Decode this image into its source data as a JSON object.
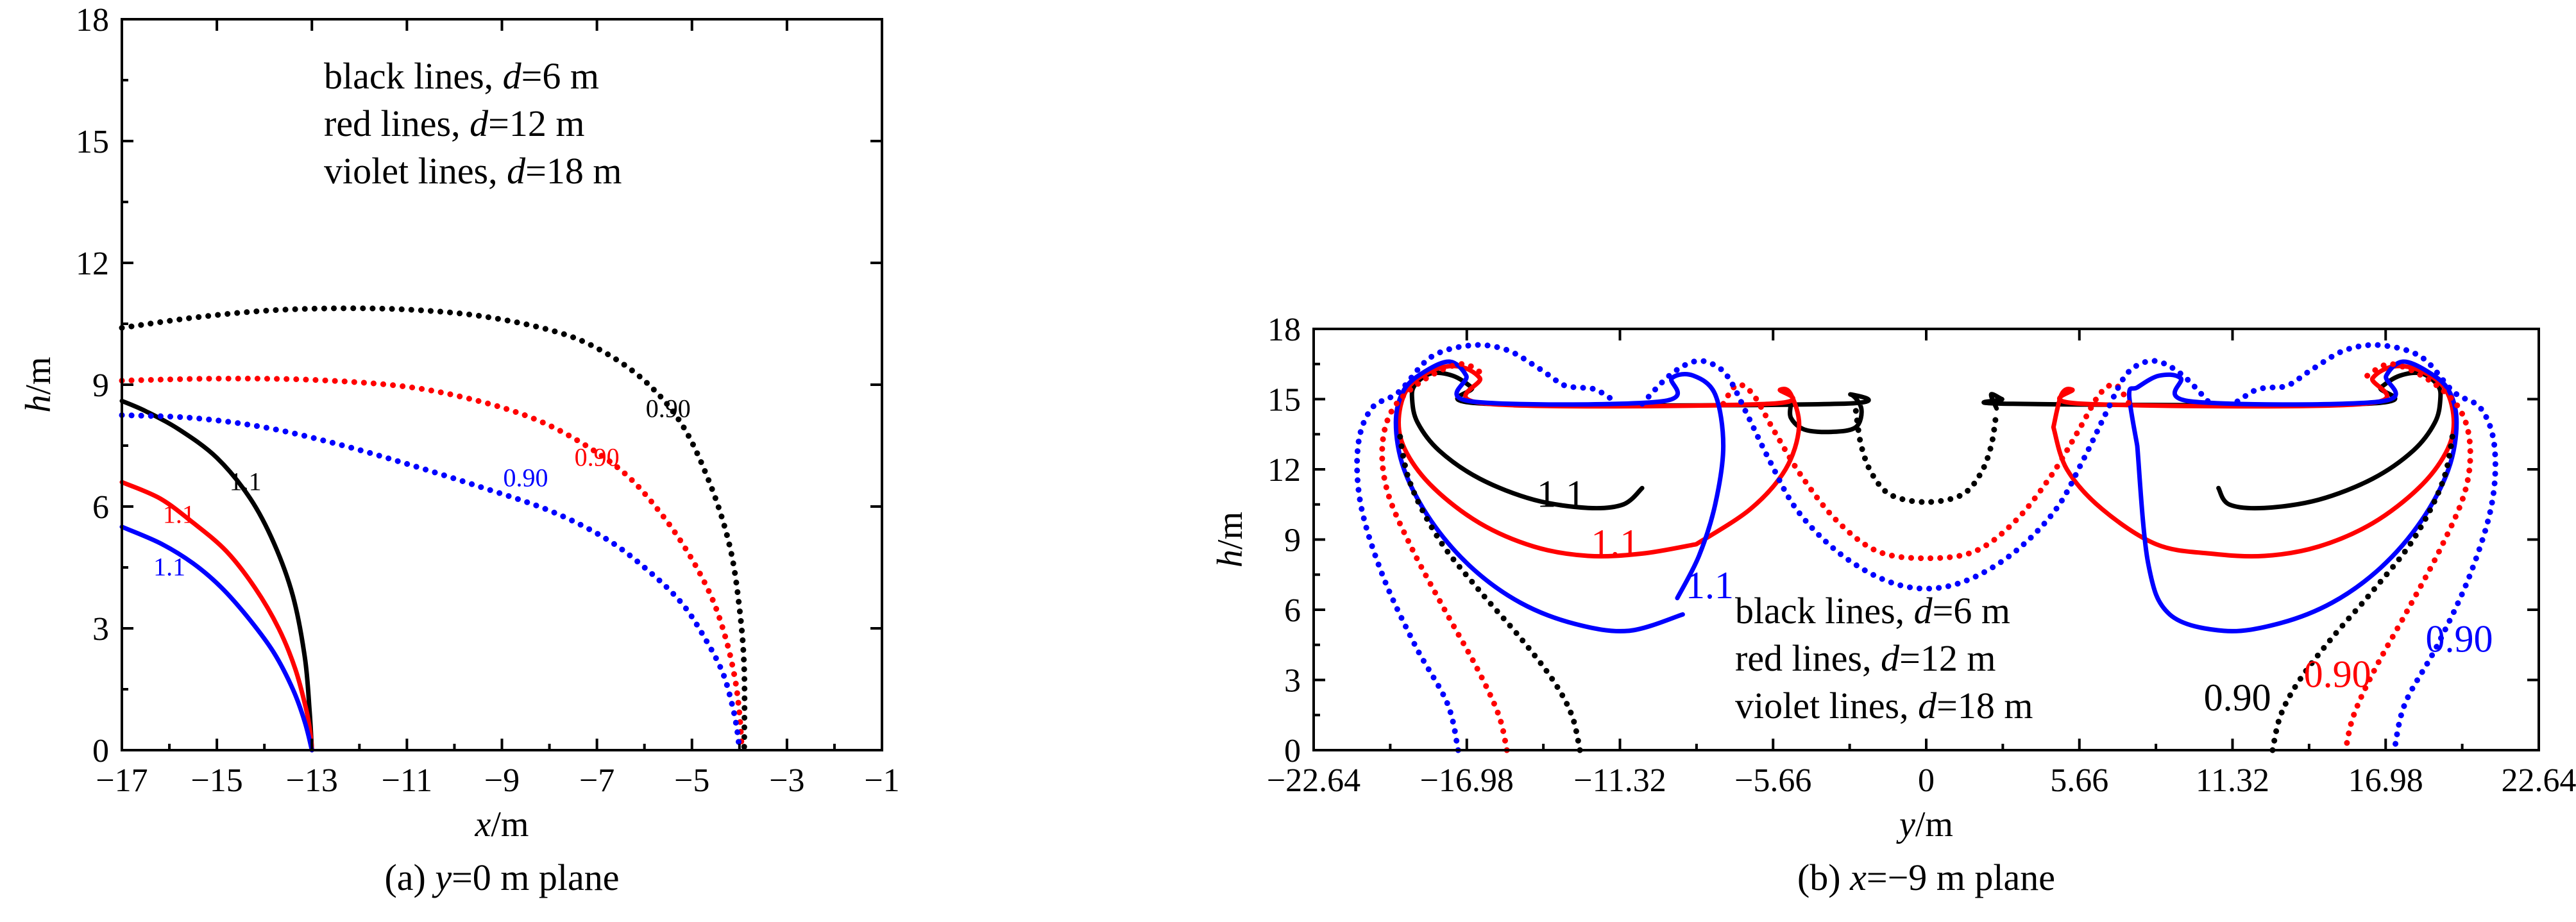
{
  "chart_data": [
    {
      "type": "line",
      "caption": "(a) y=0 m plane",
      "xlabel": "x/m",
      "ylabel": "h/m",
      "xlim": [
        -17,
        -1
      ],
      "ylim": [
        0,
        18
      ],
      "xticks": [
        "−17",
        "−15",
        "−13",
        "−11",
        "−9",
        "−7",
        "−5",
        "−3",
        "−1"
      ],
      "yticks": [
        "0",
        "3",
        "6",
        "9",
        "12",
        "15",
        "18"
      ],
      "legend": [
        "black lines, d=6 m",
        "red lines, d=12 m",
        "violet lines, d=18 m"
      ],
      "legend_position": "top-left inside",
      "colors": {
        "d6": "#000000",
        "d12": "#ff0000",
        "d18": "#0000ff"
      },
      "series": [
        {
          "label": "1.1",
          "color": "#000000",
          "style": "solid",
          "x": [
            -17,
            -16.5,
            -15.8,
            -15.0,
            -14.3,
            -13.8,
            -13.4,
            -13.15,
            -13.05,
            -13.0
          ],
          "y": [
            8.6,
            8.35,
            7.9,
            7.2,
            6.2,
            5.1,
            3.8,
            2.3,
            1.0,
            0
          ]
        },
        {
          "label": "1.1",
          "color": "#ff0000",
          "style": "solid",
          "x": [
            -17,
            -16.2,
            -15.5,
            -14.8,
            -14.2,
            -13.7,
            -13.35,
            -13.12,
            -13.03,
            -13.0
          ],
          "y": [
            6.6,
            6.2,
            5.6,
            4.9,
            4.0,
            3.0,
            2.0,
            1.0,
            0.4,
            0
          ]
        },
        {
          "label": "1.1",
          "color": "#0000ff",
          "style": "solid",
          "x": [
            -17,
            -16.2,
            -15.5,
            -14.9,
            -14.3,
            -13.8,
            -13.4,
            -13.15,
            -13.0
          ],
          "y": [
            5.5,
            5.1,
            4.6,
            4.0,
            3.2,
            2.4,
            1.5,
            0.7,
            0
          ]
        },
        {
          "label": "0.90",
          "color": "#000000",
          "style": "dotted",
          "x": [
            -17,
            -15.5,
            -14,
            -12.5,
            -11,
            -9.5,
            -8,
            -7,
            -6,
            -5.2,
            -4.6,
            -4.2,
            -4.0,
            -3.9,
            -3.9
          ],
          "y": [
            10.4,
            10.65,
            10.82,
            10.88,
            10.85,
            10.7,
            10.35,
            9.9,
            9.1,
            8.0,
            6.5,
            5.0,
            3.5,
            2.0,
            0
          ]
        },
        {
          "label": "0.90",
          "color": "#ff0000",
          "style": "dotted",
          "x": [
            -17,
            -15,
            -13,
            -11,
            -9.5,
            -8.3,
            -7.3,
            -6.4,
            -5.7,
            -5.1,
            -4.6,
            -4.3,
            -4.1,
            -4.0,
            -3.95
          ],
          "y": [
            9.1,
            9.15,
            9.12,
            8.95,
            8.6,
            8.15,
            7.55,
            6.8,
            5.9,
            4.9,
            3.8,
            2.8,
            1.8,
            0.9,
            0
          ]
        },
        {
          "label": "0.90",
          "color": "#0000ff",
          "style": "dotted",
          "x": [
            -17,
            -15.5,
            -14,
            -12.5,
            -11,
            -9.5,
            -8,
            -6.8,
            -5.9,
            -5.2,
            -4.7,
            -4.35,
            -4.15,
            -4.05,
            -4.0
          ],
          "y": [
            8.25,
            8.18,
            7.95,
            7.55,
            7.05,
            6.5,
            5.9,
            5.2,
            4.4,
            3.6,
            2.7,
            1.9,
            1.1,
            0.5,
            0
          ]
        }
      ],
      "annotations": [
        {
          "text": "0.90",
          "color": "#000000",
          "x": -5.5,
          "y": 8.2
        },
        {
          "text": "0.90",
          "color": "#ff0000",
          "x": -7.0,
          "y": 7.0
        },
        {
          "text": "0.90",
          "color": "#0000ff",
          "x": -8.5,
          "y": 6.5
        },
        {
          "text": "1.1",
          "color": "#000000",
          "x": -14.4,
          "y": 6.4
        },
        {
          "text": "1.1",
          "color": "#ff0000",
          "x": -15.8,
          "y": 5.6
        },
        {
          "text": "1.1",
          "color": "#0000ff",
          "x": -16.0,
          "y": 4.3
        }
      ]
    },
    {
      "type": "line",
      "caption": "(b) x=−9 m plane",
      "xlabel": "y/m",
      "ylabel": "h/m",
      "xlim": [
        -22.64,
        22.64
      ],
      "ylim": [
        0,
        18
      ],
      "xticks": [
        "−22.64",
        "−16.98",
        "−11.32",
        "−5.66",
        "0",
        "5.66",
        "11.32",
        "16.98",
        "22.64"
      ],
      "yticks": [
        "0",
        "3",
        "6",
        "9",
        "12",
        "15",
        "18"
      ],
      "legend": [
        "black lines, d=6 m",
        "red lines, d=12 m",
        "violet lines, d=18 m"
      ],
      "legend_position": "bottom-center inside",
      "colors": {
        "d6": "#000000",
        "d12": "#ff0000",
        "d18": "#0000ff"
      },
      "series": [
        {
          "label": "1.1",
          "color": "#000000",
          "style": "solid",
          "x": [
            -10.5,
            -11.2,
            -12.5,
            -14.5,
            -16.5,
            -18.0,
            -18.8,
            -19.0,
            -18.9,
            -18.3,
            -17.5,
            -16.8,
            -16.2,
            -3.2,
            -2.8,
            -2.4,
            -2.6,
            -3.5,
            -4.5,
            -5.0,
            -5.0
          ],
          "y": [
            11.2,
            10.5,
            10.35,
            10.7,
            11.6,
            12.8,
            14.0,
            15.0,
            15.6,
            16.1,
            16.0,
            15.5,
            14.8,
            14.8,
            15.2,
            14.6,
            13.8,
            13.6,
            13.7,
            14.2,
            14.8
          ]
        },
        {
          "label": "1.1",
          "color": "#000000",
          "style": "solid",
          "x": [
            2.6,
            2.4,
            2.8,
            3.2,
            16.2,
            16.8,
            17.5,
            18.3,
            18.9,
            19.0,
            18.8,
            18.0,
            16.5,
            14.5,
            12.5,
            11.2,
            10.8
          ],
          "y": [
            14.6,
            15.2,
            15.0,
            14.8,
            14.8,
            15.5,
            16.0,
            16.1,
            15.6,
            15.0,
            14.0,
            12.8,
            11.6,
            10.7,
            10.35,
            10.5,
            11.2
          ]
        },
        {
          "label": "1.1",
          "color": "#ff0000",
          "style": "solid",
          "x": [
            -8.5,
            -10.5,
            -12.5,
            -14.5,
            -16.5,
            -18.2,
            -19.2,
            -19.5,
            -19.2,
            -18.3,
            -17.3,
            -16.5,
            -16.2,
            -5.8,
            -5.4,
            -5.0,
            -4.7,
            -5.2,
            -6.5,
            -8.5
          ],
          "y": [
            8.8,
            8.4,
            8.3,
            8.7,
            9.7,
            11.2,
            12.7,
            14.0,
            15.4,
            16.2,
            16.4,
            15.9,
            14.8,
            14.8,
            15.4,
            15.2,
            13.8,
            12.0,
            10.3,
            8.8
          ]
        },
        {
          "label": "1.1",
          "color": "#ff0000",
          "style": "solid",
          "x": [
            4.7,
            5.0,
            5.4,
            5.8,
            16.2,
            16.5,
            17.3,
            18.3,
            19.2,
            19.5,
            19.2,
            18.2,
            16.5,
            14.5,
            12.5,
            10.5,
            8.5,
            6.5,
            5.2,
            4.7
          ],
          "y": [
            13.8,
            15.2,
            15.4,
            14.8,
            14.8,
            15.9,
            16.4,
            16.2,
            15.4,
            14.0,
            12.7,
            11.2,
            9.7,
            8.7,
            8.3,
            8.4,
            8.8,
            10.3,
            12.0,
            13.8
          ]
        },
        {
          "label": "1.1",
          "color": "#0000ff",
          "style": "solid",
          "x": [
            -9.0,
            -11.0,
            -13.0,
            -15.0,
            -16.8,
            -18.3,
            -19.3,
            -19.6,
            -19.3,
            -18.5,
            -17.6,
            -17.0,
            -16.8,
            -9.8,
            -9.4,
            -8.6,
            -7.8,
            -7.5,
            -7.8,
            -8.4,
            -9.2
          ],
          "y": [
            5.8,
            5.1,
            5.4,
            6.3,
            7.8,
            9.8,
            12.0,
            14.0,
            15.4,
            16.2,
            16.6,
            16.0,
            14.9,
            14.9,
            15.9,
            16.0,
            15.2,
            13.0,
            10.5,
            8.3,
            6.5
          ]
        },
        {
          "label": "1.1",
          "color": "#0000ff",
          "style": "solid",
          "x": [
            7.8,
            7.5,
            7.8,
            8.6,
            9.4,
            9.8,
            16.8,
            17.0,
            17.6,
            18.5,
            19.3,
            19.6,
            19.3,
            18.3,
            16.8,
            15.0,
            13.0,
            11.0,
            9.0,
            8.2,
            7.8
          ],
          "y": [
            13.0,
            15.2,
            15.5,
            16.0,
            15.9,
            14.9,
            14.9,
            16.0,
            16.6,
            16.2,
            15.4,
            14.0,
            12.0,
            9.8,
            7.8,
            6.3,
            5.4,
            5.1,
            5.8,
            8.0,
            13.0
          ]
        },
        {
          "label": "0.90",
          "color": "#000000",
          "style": "dotted",
          "x": [
            -12.8,
            -13.1,
            -13.8,
            -15.0,
            -16.5,
            -18.0,
            -19.1,
            -19.5
          ],
          "y": [
            0,
            1.5,
            3.0,
            4.8,
            6.8,
            9.0,
            11.5,
            13.8
          ]
        },
        {
          "label": "0.90",
          "color": "#000000",
          "style": "dotted",
          "x": [
            -2.6,
            -2.4,
            -2.0,
            -1.3,
            0,
            1.3,
            2.0,
            2.4,
            2.6
          ],
          "y": [
            14.5,
            13.0,
            11.8,
            10.9,
            10.6,
            10.9,
            11.8,
            13.0,
            14.5
          ]
        },
        {
          "label": "0.90",
          "color": "#000000",
          "style": "dotted",
          "x": [
            12.8,
            13.1,
            13.8,
            15.0,
            16.5,
            18.0,
            19.1,
            19.5
          ],
          "y": [
            0,
            1.5,
            3.0,
            4.8,
            6.8,
            9.0,
            11.5,
            13.8
          ]
        },
        {
          "label": "0.90",
          "color": "#ff0000",
          "style": "dotted",
          "x": [
            -15.5,
            -15.8,
            -16.6,
            -17.8,
            -19.0,
            -19.9,
            -20.1,
            -19.7,
            -18.6,
            -17.2,
            -16.3
          ],
          "y": [
            0,
            1.5,
            3.5,
            6.0,
            8.6,
            11.0,
            13.0,
            14.6,
            15.8,
            16.5,
            16.0
          ]
        },
        {
          "label": "0.90",
          "color": "#ff0000",
          "style": "dotted",
          "x": [
            -7.5,
            -7.0,
            -6.4,
            -5.6,
            -4.6,
            -3.3,
            -1.8,
            0,
            1.8,
            3.3,
            4.6,
            5.6,
            6.4,
            7.0,
            7.5
          ],
          "y": [
            14.8,
            15.6,
            15.2,
            13.6,
            11.7,
            9.8,
            8.5,
            8.2,
            8.5,
            9.8,
            11.7,
            13.6,
            15.2,
            15.6,
            14.8
          ]
        },
        {
          "label": "0.90",
          "color": "#ff0000",
          "style": "dotted",
          "x": [
            16.3,
            17.2,
            18.6,
            19.7,
            20.1,
            19.9,
            19.0,
            17.8,
            16.6,
            15.8,
            15.5
          ],
          "y": [
            16.0,
            16.5,
            15.8,
            14.6,
            13.0,
            11.0,
            8.6,
            6.0,
            3.5,
            1.5,
            0
          ]
        },
        {
          "label": "0.90",
          "color": "#0000ff",
          "style": "dotted",
          "x": [
            -17.3,
            -17.7,
            -18.9,
            -20.1,
            -20.9,
            -21.0,
            -20.5,
            -19.5,
            -18.3,
            -16.8,
            -15.5,
            -14.3,
            -13.4,
            -12.8,
            -12.2,
            -11.5
          ],
          "y": [
            0,
            2.0,
            4.5,
            7.5,
            10.5,
            13.0,
            14.6,
            15.3,
            16.8,
            17.3,
            17.1,
            16.3,
            15.6,
            15.5,
            15.4,
            14.9
          ]
        },
        {
          "label": "0.90",
          "color": "#0000ff",
          "style": "dotted",
          "x": [
            -10.5,
            -9.5,
            -8.6,
            -7.9,
            -7.3,
            -6.6,
            -5.8,
            -4.8,
            -3.3,
            -1.6,
            0,
            1.6,
            3.3,
            4.8,
            5.8,
            6.6,
            7.3,
            7.9,
            8.6,
            9.5,
            10.5
          ],
          "y": [
            14.8,
            16.0,
            16.6,
            16.5,
            15.9,
            14.3,
            12.4,
            10.3,
            8.5,
            7.3,
            6.9,
            7.3,
            8.5,
            10.3,
            12.4,
            14.3,
            15.9,
            16.5,
            16.6,
            16.0,
            14.8
          ]
        },
        {
          "label": "0.90",
          "color": "#0000ff",
          "style": "dotted",
          "x": [
            11.5,
            12.2,
            12.8,
            13.4,
            14.3,
            15.5,
            16.8,
            18.3,
            19.5,
            20.5,
            21.0,
            20.9,
            20.1,
            18.9,
            17.7,
            17.3
          ],
          "y": [
            14.9,
            15.4,
            15.5,
            15.6,
            16.3,
            17.1,
            17.3,
            16.8,
            15.3,
            14.6,
            13.0,
            10.5,
            7.5,
            4.5,
            2.0,
            0
          ]
        }
      ],
      "annotations": [
        {
          "text": "1.1",
          "color": "#000000",
          "x": -13.5,
          "y": 10.4
        },
        {
          "text": "1.1",
          "color": "#ff0000",
          "x": -11.5,
          "y": 8.3
        },
        {
          "text": "1.1",
          "color": "#0000ff",
          "x": -8.0,
          "y": 6.5
        },
        {
          "text": "0.90",
          "color": "#000000",
          "x": 11.5,
          "y": 1.7
        },
        {
          "text": "0.90",
          "color": "#ff0000",
          "x": 15.2,
          "y": 2.7
        },
        {
          "text": "0.90",
          "color": "#0000ff",
          "x": 19.7,
          "y": 4.2
        }
      ]
    }
  ]
}
